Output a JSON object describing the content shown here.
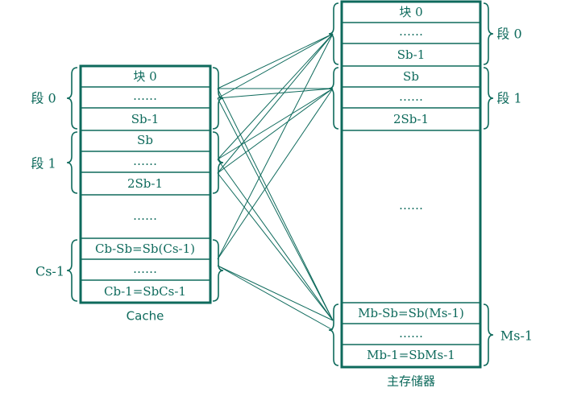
{
  "cache": {
    "caption": "Cache",
    "rows": [
      "块 0",
      "……",
      "Sb-1",
      "Sb",
      "……",
      "2Sb-1",
      "……",
      "Cb-Sb=Sb(Cs-1)",
      "……",
      "Cb-1=SbCs-1"
    ],
    "segments": [
      "段 0",
      "段 1",
      "Cs-1"
    ]
  },
  "memory": {
    "caption": "主存储器",
    "top_rows": [
      "块 0",
      "……",
      "Sb-1",
      "Sb",
      "……",
      "2Sb-1"
    ],
    "middle": "……",
    "bottom_rows": [
      "Mb-Sb=Sb(Ms-1)",
      "……",
      "Mb-1=SbMs-1"
    ],
    "segments": [
      "段 0",
      "段 1",
      "Ms-1"
    ]
  }
}
